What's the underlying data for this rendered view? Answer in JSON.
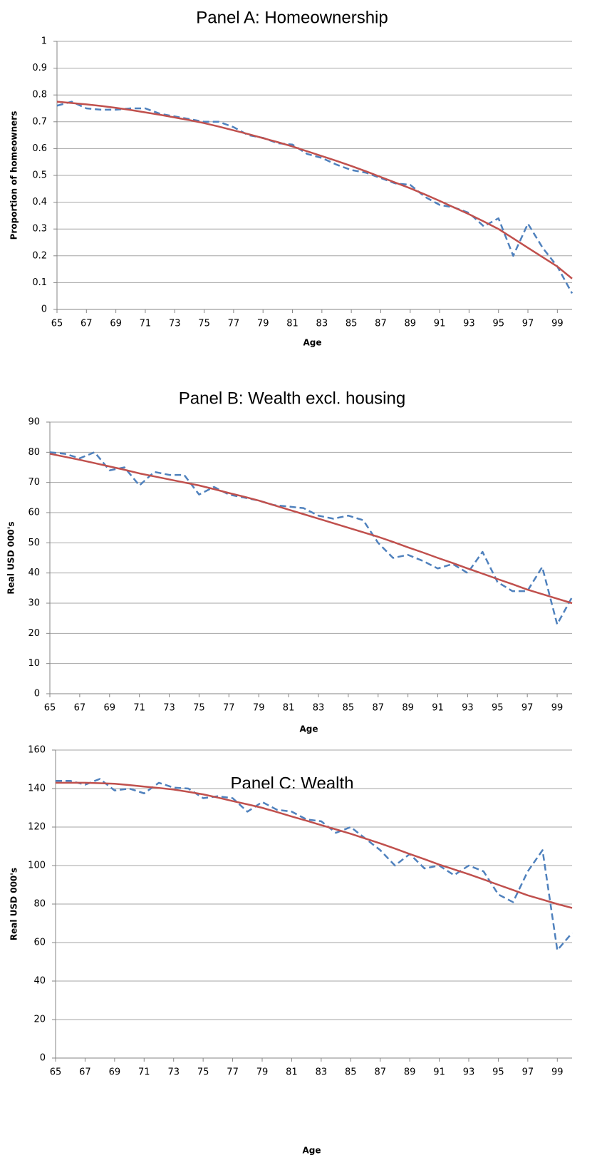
{
  "chart_data": [
    {
      "type": "line",
      "title": "Panel A: Homeownership",
      "x_label": "Age",
      "y_label": "Proportion of homeowners",
      "x": [
        65,
        66,
        67,
        68,
        69,
        70,
        71,
        72,
        73,
        74,
        75,
        76,
        77,
        78,
        79,
        80,
        81,
        82,
        83,
        84,
        85,
        86,
        87,
        88,
        89,
        90,
        91,
        92,
        93,
        94,
        95,
        96,
        97,
        98,
        99,
        100
      ],
      "xlim": [
        65,
        100
      ],
      "xticks": [
        65,
        67,
        69,
        71,
        73,
        75,
        77,
        79,
        81,
        83,
        85,
        87,
        89,
        91,
        93,
        95,
        97,
        99
      ],
      "ylim": [
        0,
        1
      ],
      "yticks": [
        0,
        0.1,
        0.2,
        0.3,
        0.4,
        0.5,
        0.6,
        0.7,
        0.8,
        0.9,
        1
      ],
      "grid": true,
      "series": [
        {
          "color": "#4f81bd",
          "line_style": "dashed",
          "values": [
            0.76,
            0.775,
            0.75,
            0.745,
            0.745,
            0.75,
            0.75,
            0.73,
            0.72,
            0.71,
            0.7,
            0.7,
            0.68,
            0.65,
            0.64,
            0.62,
            0.615,
            0.58,
            0.565,
            0.54,
            0.52,
            0.51,
            0.49,
            0.47,
            0.465,
            0.42,
            0.39,
            0.38,
            0.36,
            0.31,
            0.34,
            0.2,
            0.32,
            0.23,
            0.16,
            0.06
          ]
        },
        {
          "color": "#c0504d",
          "line_style": "solid",
          "values": [
            0.775,
            0.77,
            0.765,
            0.759,
            0.752,
            0.744,
            0.735,
            0.726,
            0.716,
            0.706,
            0.695,
            0.682,
            0.668,
            0.654,
            0.639,
            0.624,
            0.608,
            0.59,
            0.572,
            0.554,
            0.535,
            0.515,
            0.494,
            0.473,
            0.452,
            0.429,
            0.405,
            0.38,
            0.355,
            0.328,
            0.3,
            0.265,
            0.23,
            0.195,
            0.16,
            0.115
          ]
        }
      ]
    },
    {
      "type": "line",
      "title": "Panel B: Wealth excl. housing",
      "x_label": "Age",
      "y_label": "Real USD 000's",
      "x": [
        65,
        66,
        67,
        68,
        69,
        70,
        71,
        72,
        73,
        74,
        75,
        76,
        77,
        78,
        79,
        80,
        81,
        82,
        83,
        84,
        85,
        86,
        87,
        88,
        89,
        90,
        91,
        92,
        93,
        94,
        95,
        96,
        97,
        98,
        99,
        100
      ],
      "xlim": [
        65,
        100
      ],
      "xticks": [
        65,
        67,
        69,
        71,
        73,
        75,
        77,
        79,
        81,
        83,
        85,
        87,
        89,
        91,
        93,
        95,
        97,
        99
      ],
      "ylim": [
        0,
        90
      ],
      "yticks": [
        0,
        10,
        20,
        30,
        40,
        50,
        60,
        70,
        80,
        90
      ],
      "grid": true,
      "series": [
        {
          "color": "#4f81bd",
          "line_style": "dashed",
          "values": [
            80,
            79.5,
            78,
            80,
            74,
            75,
            69,
            73.5,
            72.5,
            72.5,
            66,
            68.5,
            66,
            65,
            64,
            62.5,
            62,
            61.5,
            59,
            58,
            59,
            57.5,
            50,
            45,
            46,
            44,
            41.5,
            43,
            40,
            47,
            37,
            34,
            34,
            42,
            23,
            32
          ]
        },
        {
          "color": "#c0504d",
          "line_style": "solid",
          "values": [
            79.5,
            78.5,
            77.5,
            76.4,
            75.3,
            74.2,
            73,
            72,
            71,
            70,
            69,
            67.8,
            66.5,
            65.3,
            64,
            62.5,
            61,
            59.5,
            58,
            56.5,
            55,
            53.5,
            52,
            50.3,
            48.5,
            46.8,
            45,
            43.3,
            41.5,
            39.8,
            38,
            36.3,
            34.5,
            33,
            31.5,
            30
          ]
        }
      ]
    },
    {
      "type": "line",
      "title": "Panel C: Wealth",
      "x_label": "Age",
      "y_label": "Real USD 000's",
      "x": [
        65,
        66,
        67,
        68,
        69,
        70,
        71,
        72,
        73,
        74,
        75,
        76,
        77,
        78,
        79,
        80,
        81,
        82,
        83,
        84,
        85,
        86,
        87,
        88,
        89,
        90,
        91,
        92,
        93,
        94,
        95,
        96,
        97,
        98,
        99,
        100
      ],
      "xlim": [
        65,
        100
      ],
      "xticks": [
        65,
        67,
        69,
        71,
        73,
        75,
        77,
        79,
        81,
        83,
        85,
        87,
        89,
        91,
        93,
        95,
        97,
        99
      ],
      "ylim": [
        0,
        160
      ],
      "yticks": [
        0,
        20,
        40,
        60,
        80,
        100,
        120,
        140,
        160
      ],
      "grid": true,
      "series": [
        {
          "color": "#4f81bd",
          "line_style": "dashed",
          "values": [
            144,
            144,
            142,
            145,
            139,
            140,
            137.5,
            143,
            140.5,
            140,
            135,
            136,
            135,
            128,
            133,
            129,
            128,
            124,
            123,
            117,
            120,
            114,
            108,
            100,
            106,
            98.5,
            100,
            95,
            100,
            97,
            85,
            81,
            97,
            108,
            56,
            65
          ]
        },
        {
          "color": "#c0504d",
          "line_style": "solid",
          "values": [
            143,
            143,
            143,
            142.8,
            142.5,
            141.8,
            141,
            140.3,
            139.5,
            138.3,
            137,
            135.3,
            133.5,
            131.8,
            130,
            127.8,
            125.5,
            123.3,
            121,
            118.8,
            116.5,
            114,
            111.5,
            108.8,
            106,
            103.3,
            100.5,
            98,
            95.5,
            92.8,
            90,
            87.3,
            84.5,
            82.3,
            80,
            78
          ]
        }
      ]
    }
  ]
}
